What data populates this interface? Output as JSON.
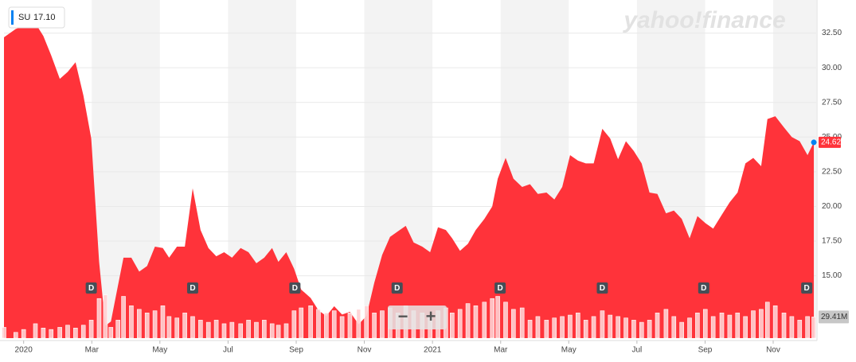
{
  "chart_data": {
    "type": "area",
    "logo": "yahoo!finance",
    "legend_value": "17.10",
    "x": [
      -2.5,
      -1.0,
      0,
      1.5,
      2.5,
      3.5,
      4.6,
      5.6,
      6.6,
      7.6,
      8.6,
      9.6,
      10.4,
      11.1,
      12.0,
      12.7,
      13.7,
      14.7,
      15.7,
      16.7,
      17.7,
      18.5,
      19.5,
      20.5,
      21.5,
      22.5,
      23.5,
      24.5,
      25.5,
      26.5,
      27.6,
      28.6,
      29.6,
      30.6,
      31.6,
      32.4,
      33.4,
      34.4,
      35.3,
      36.5,
      37.5,
      38.5,
      39.5,
      40.5,
      41.5,
      42.6,
      43.6,
      44.6,
      45.6,
      46.6,
      47.6,
      48.6,
      49.6,
      50.7,
      51.7,
      52.7,
      53.7,
      54.5,
      55.5,
      56.5,
      57.5,
      58.6,
      59.6,
      60.3,
      61.3,
      62.3,
      63.4,
      64.4,
      65.4,
      66.5,
      67.5,
      68.5,
      69.5,
      70.5,
      71.5,
      72.5,
      73.6,
      74.6,
      75.6,
      76.6,
      77.6,
      78.6,
      79.6,
      80.6,
      81.7,
      82.7,
      83.7,
      84.7,
      85.7,
      86.7,
      87.7,
      88.8,
      89.8,
      90.8,
      91.8,
      92.8,
      93.8,
      94.6,
      95.6,
      96.7,
      97.7,
      98.7,
      99.7,
      100.5
    ],
    "series": [
      {
        "name": "SU",
        "color": "#ff333a",
        "values": [
          32.2,
          32.8,
          33.0,
          33.2,
          32.3,
          30.9,
          29.2,
          29.7,
          30.4,
          28.0,
          24.9,
          16.0,
          11.4,
          11.7,
          14.3,
          16.3,
          16.3,
          15.3,
          15.7,
          17.1,
          17.0,
          16.3,
          17.1,
          17.1,
          21.3,
          18.3,
          17.0,
          16.4,
          16.7,
          16.3,
          17.0,
          16.7,
          15.9,
          16.3,
          17.0,
          16.0,
          16.7,
          15.5,
          14.0,
          13.4,
          12.5,
          12.1,
          12.8,
          12.2,
          12.4,
          11.5,
          12.1,
          14.5,
          16.5,
          17.8,
          18.2,
          18.6,
          17.4,
          17.1,
          16.7,
          18.5,
          18.3,
          17.7,
          16.8,
          17.3,
          18.3,
          19.1,
          20.0,
          22.0,
          23.5,
          22.0,
          21.4,
          21.6,
          20.9,
          21.0,
          20.5,
          21.4,
          23.7,
          23.3,
          23.1,
          23.1,
          25.6,
          24.9,
          23.4,
          24.7,
          24.0,
          23.1,
          21.0,
          20.9,
          19.5,
          19.7,
          19.1,
          17.7,
          19.3,
          18.8,
          18.4,
          19.4,
          20.3,
          21.0,
          23.1,
          23.5,
          22.9,
          26.3,
          26.5,
          25.7,
          25.0,
          24.7,
          23.7,
          24.62
        ]
      }
    ],
    "volume": {
      "axis": "y2",
      "color": "#ffd0d3",
      "values": [
        15,
        8,
        12,
        20,
        14,
        12,
        15,
        18,
        14,
        18,
        25,
        55,
        60,
        15,
        25,
        58,
        45,
        40,
        35,
        38,
        45,
        30,
        28,
        35,
        30,
        25,
        22,
        25,
        20,
        22,
        20,
        25,
        22,
        25,
        20,
        18,
        20,
        38,
        42,
        45,
        40,
        35,
        38,
        30,
        35,
        40,
        45,
        35,
        38,
        42,
        35,
        45,
        38,
        35,
        30,
        38,
        42,
        35,
        40,
        48,
        45,
        50,
        55,
        58,
        50,
        40,
        42,
        25,
        30,
        25,
        28,
        30,
        32,
        35,
        25,
        30,
        38,
        32,
        30,
        28,
        25,
        22,
        25,
        35,
        40,
        30,
        22,
        28,
        35,
        40,
        30,
        35,
        32,
        35,
        30,
        38,
        40,
        50,
        45,
        35,
        30,
        25,
        30,
        29.41
      ]
    },
    "current_price": {
      "value": 24.62,
      "label": "24.62",
      "color": "#0081f2"
    },
    "current_volume": {
      "value": 29.41,
      "label": "29.41M"
    },
    "dividends": [
      {
        "x": 8.6,
        "label": "D"
      },
      {
        "x": 21.5,
        "label": "D"
      },
      {
        "x": 34.5,
        "label": "D"
      },
      {
        "x": 47.5,
        "label": "D"
      },
      {
        "x": 60.6,
        "label": "D"
      },
      {
        "x": 73.6,
        "label": "D"
      },
      {
        "x": 86.5,
        "label": "D"
      },
      {
        "x": 99.6,
        "label": "D"
      }
    ],
    "xlim": [
      -2.5,
      100.8
    ],
    "xticks": [
      {
        "value": 0,
        "label": "2020"
      },
      {
        "value": 8.67,
        "label": "Mar"
      },
      {
        "value": 17.33,
        "label": "May"
      },
      {
        "value": 26,
        "label": "Jul"
      },
      {
        "value": 34.67,
        "label": "Sep"
      },
      {
        "value": 43.33,
        "label": "Nov"
      },
      {
        "value": 52,
        "label": "2021"
      },
      {
        "value": 60.67,
        "label": "Mar"
      },
      {
        "value": 69.33,
        "label": "May"
      },
      {
        "value": 78,
        "label": "Jul"
      },
      {
        "value": 86.67,
        "label": "Sep"
      },
      {
        "value": 95.33,
        "label": "Nov"
      }
    ],
    "ylim": [
      10.5,
      34.6
    ],
    "yticks": [
      {
        "value": 15,
        "label": "15.00"
      },
      {
        "value": 17.5,
        "label": "17.50"
      },
      {
        "value": 20,
        "label": "20.00"
      },
      {
        "value": 22.5,
        "label": "22.50"
      },
      {
        "value": 25,
        "label": "25.00"
      },
      {
        "value": 27.5,
        "label": "27.50"
      },
      {
        "value": 30,
        "label": "30.00"
      },
      {
        "value": 32.5,
        "label": "32.50"
      }
    ],
    "y2lim": [
      0,
      105
    ],
    "grid": true
  },
  "controls": {
    "zoom_out": "−",
    "zoom_in": "+"
  }
}
